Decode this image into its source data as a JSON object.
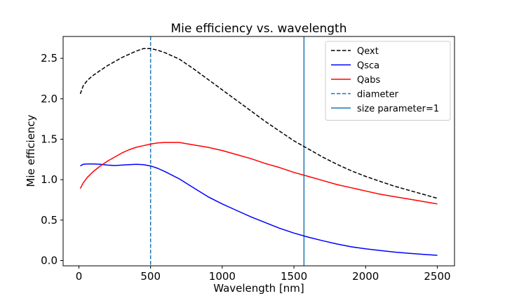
{
  "chart_data": {
    "type": "line",
    "title": "Mie efficiency vs. wavelength",
    "xlabel": "Wavelength [nm]",
    "ylabel": "Mie efficiency",
    "xlim": [
      -110,
      2620
    ],
    "ylim": [
      -0.065,
      2.77
    ],
    "xticks": [
      0,
      500,
      1000,
      1500,
      2000,
      2500
    ],
    "xtick_labels": [
      "0",
      "500",
      "1000",
      "1500",
      "2000",
      "2500"
    ],
    "yticks": [
      0.0,
      0.5,
      1.0,
      1.5,
      2.0,
      2.5
    ],
    "ytick_labels": [
      "0.0",
      "0.5",
      "1.0",
      "1.5",
      "2.0",
      "2.5"
    ],
    "legend_position": "top-right",
    "series": [
      {
        "name": "Qext",
        "color": "#000000",
        "dash": "dashed",
        "x": [
          10,
          30,
          60,
          100,
          150,
          200,
          250,
          300,
          350,
          400,
          450,
          500,
          550,
          600,
          700,
          800,
          900,
          1000,
          1100,
          1200,
          1300,
          1400,
          1500,
          1600,
          1700,
          1800,
          1900,
          2000,
          2100,
          2200,
          2300,
          2400,
          2500
        ],
        "y": [
          2.06,
          2.16,
          2.23,
          2.29,
          2.35,
          2.41,
          2.46,
          2.51,
          2.55,
          2.59,
          2.62,
          2.62,
          2.6,
          2.57,
          2.49,
          2.37,
          2.24,
          2.11,
          1.98,
          1.85,
          1.72,
          1.6,
          1.48,
          1.38,
          1.28,
          1.19,
          1.11,
          1.04,
          0.98,
          0.92,
          0.87,
          0.82,
          0.77
        ]
      },
      {
        "name": "Qsca",
        "color": "#0000ff",
        "dash": "solid",
        "x": [
          10,
          30,
          60,
          100,
          150,
          200,
          250,
          300,
          350,
          400,
          450,
          500,
          550,
          600,
          700,
          800,
          900,
          1000,
          1100,
          1200,
          1300,
          1400,
          1500,
          1600,
          1700,
          1800,
          1900,
          2000,
          2100,
          2200,
          2300,
          2400,
          2500
        ],
        "y": [
          1.17,
          1.19,
          1.195,
          1.195,
          1.19,
          1.18,
          1.175,
          1.18,
          1.185,
          1.19,
          1.185,
          1.17,
          1.14,
          1.1,
          1.01,
          0.9,
          0.79,
          0.7,
          0.62,
          0.54,
          0.47,
          0.4,
          0.34,
          0.29,
          0.245,
          0.205,
          0.17,
          0.145,
          0.125,
          0.105,
          0.09,
          0.077,
          0.065
        ]
      },
      {
        "name": "Qabs",
        "color": "#ff0000",
        "dash": "solid",
        "x": [
          10,
          30,
          60,
          100,
          150,
          200,
          250,
          300,
          350,
          400,
          450,
          500,
          550,
          600,
          700,
          800,
          900,
          1000,
          1100,
          1200,
          1300,
          1400,
          1500,
          1600,
          1700,
          1800,
          1900,
          2000,
          2100,
          2200,
          2300,
          2400,
          2500
        ],
        "y": [
          0.89,
          0.96,
          1.03,
          1.1,
          1.17,
          1.23,
          1.28,
          1.33,
          1.37,
          1.4,
          1.42,
          1.44,
          1.455,
          1.46,
          1.46,
          1.43,
          1.4,
          1.36,
          1.31,
          1.26,
          1.2,
          1.15,
          1.09,
          1.04,
          0.99,
          0.94,
          0.9,
          0.86,
          0.82,
          0.79,
          0.76,
          0.73,
          0.7
        ]
      }
    ],
    "vlines": [
      {
        "name": "diameter",
        "x": 500,
        "color": "#1f77b4",
        "dash": "dashed"
      },
      {
        "name": "size parameter=1",
        "x": 1570,
        "color": "#1f77b4",
        "dash": "solid"
      }
    ]
  }
}
